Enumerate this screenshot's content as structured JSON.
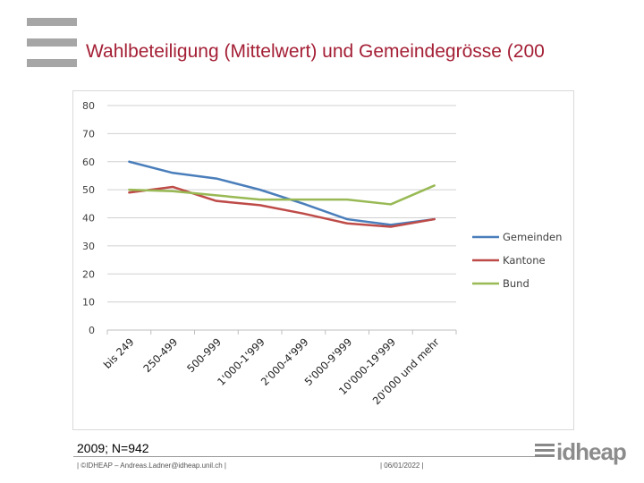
{
  "slide": {
    "title": "Wahlbeteiligung (Mittelwert) und Gemeindegrösse (200",
    "source": "2009; N=942",
    "footer_left": "| ©IDHEAP – Andreas.Ladner@idheap.unil.ch |",
    "footer_date": "| 06/01/2022 |",
    "logo_text": "idheap"
  },
  "chart_data": {
    "type": "line",
    "title": "",
    "xlabel": "",
    "ylabel": "",
    "ylim": [
      0,
      80
    ],
    "yticks": [
      0,
      10,
      20,
      30,
      40,
      50,
      60,
      70,
      80
    ],
    "grid": true,
    "legend_position": "right",
    "categories": [
      "bis 249",
      "250-499",
      "500-999",
      "1'000-1'999",
      "2'000-4'999",
      "5'000-9'999",
      "10'000-19'999",
      "20'000 und mehr"
    ],
    "series": [
      {
        "name": "Gemeinden",
        "color": "#4a7ebb",
        "values": [
          60,
          56,
          54,
          50,
          45,
          39.5,
          37.5,
          39.5
        ]
      },
      {
        "name": "Kantone",
        "color": "#be4b48",
        "values": [
          49,
          51,
          46,
          44.5,
          41.5,
          38,
          36.8,
          39.5
        ]
      },
      {
        "name": "Bund",
        "color": "#98b954",
        "values": [
          50,
          49.5,
          48,
          46.5,
          46.5,
          46.5,
          44.8,
          51.5
        ]
      }
    ]
  }
}
